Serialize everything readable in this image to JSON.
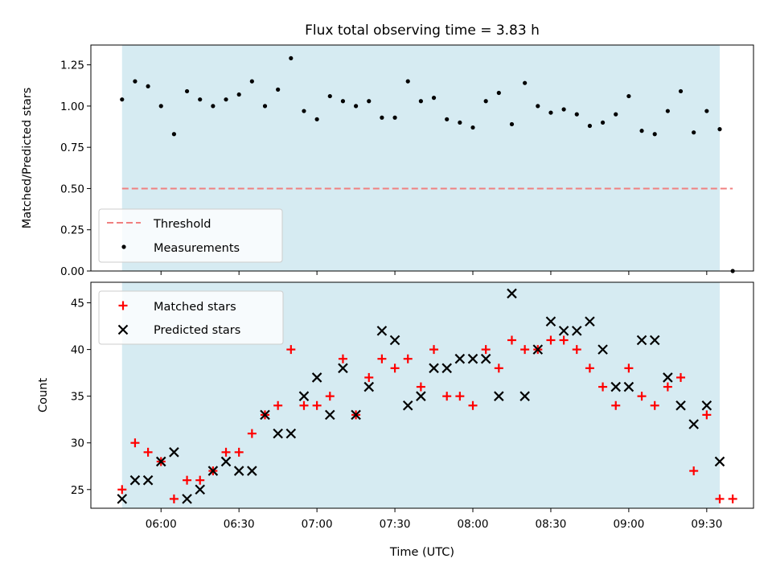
{
  "chart_data": [
    {
      "type": "scatter",
      "title": "Flux total observing time = 3.83 h",
      "xlabel": "",
      "ylabel": "Matched/Predicted stars",
      "ylim": [
        0,
        1.37
      ],
      "yticks": [
        "0.00",
        "0.25",
        "0.50",
        "0.75",
        "1.00",
        "1.25"
      ],
      "ytick_values": [
        0,
        0.25,
        0.5,
        0.75,
        1.0,
        1.25
      ],
      "shaded_span_minutes": [
        345,
        575
      ],
      "threshold": {
        "name": "Threshold",
        "value": 0.5,
        "color": "#f08080",
        "style": "dashed",
        "x_range_minutes": [
          345,
          580
        ]
      },
      "legend": {
        "position": "lower-left",
        "entries": [
          "Threshold",
          "Measurements"
        ]
      },
      "series": [
        {
          "name": "Measurements",
          "color": "#000000",
          "marker": "dot",
          "x": [
            "05:45",
            "05:50",
            "05:55",
            "06:00",
            "06:05",
            "06:10",
            "06:15",
            "06:20",
            "06:25",
            "06:30",
            "06:35",
            "06:40",
            "06:45",
            "06:50",
            "06:55",
            "07:00",
            "07:05",
            "07:10",
            "07:15",
            "07:20",
            "07:25",
            "07:30",
            "07:35",
            "07:40",
            "07:45",
            "07:50",
            "07:55",
            "08:00",
            "08:05",
            "08:10",
            "08:15",
            "08:20",
            "08:25",
            "08:30",
            "08:35",
            "08:40",
            "08:45",
            "08:50",
            "08:55",
            "09:00",
            "09:05",
            "09:10",
            "09:15",
            "09:20",
            "09:25",
            "09:30",
            "09:35",
            "09:40"
          ],
          "values": [
            1.04,
            1.15,
            1.12,
            1.0,
            0.83,
            1.09,
            1.04,
            1.0,
            1.04,
            1.07,
            1.15,
            1.0,
            1.1,
            1.29,
            0.97,
            0.92,
            1.06,
            1.03,
            1.0,
            1.03,
            0.93,
            0.93,
            1.15,
            1.03,
            1.05,
            0.92,
            0.9,
            0.87,
            1.03,
            1.08,
            0.89,
            1.14,
            1.0,
            0.96,
            0.98,
            0.95,
            0.88,
            0.9,
            0.95,
            1.06,
            0.85,
            0.83,
            0.97,
            1.09,
            0.84,
            0.97,
            0.86,
            0.0
          ]
        }
      ]
    },
    {
      "type": "scatter",
      "title": "",
      "xlabel": "Time (UTC)",
      "ylabel": "Count",
      "ylim": [
        23,
        47.2
      ],
      "yticks": [
        "25",
        "30",
        "35",
        "40",
        "45"
      ],
      "ytick_values": [
        25,
        30,
        35,
        40,
        45
      ],
      "xlim_minutes": [
        333,
        588
      ],
      "xticks": [
        "06:00",
        "06:30",
        "07:00",
        "07:30",
        "08:00",
        "08:30",
        "09:00",
        "09:30"
      ],
      "xtick_minutes": [
        360,
        390,
        420,
        450,
        480,
        510,
        540,
        570
      ],
      "shaded_span_minutes": [
        345,
        575
      ],
      "legend": {
        "position": "top-left",
        "entries": [
          "Matched stars",
          "Predicted stars"
        ]
      },
      "series": [
        {
          "name": "Matched stars",
          "color": "#ff0000",
          "marker": "plus",
          "x": [
            "05:45",
            "05:50",
            "05:55",
            "06:00",
            "06:05",
            "06:10",
            "06:15",
            "06:20",
            "06:25",
            "06:30",
            "06:35",
            "06:40",
            "06:45",
            "06:50",
            "06:55",
            "07:00",
            "07:05",
            "07:10",
            "07:15",
            "07:20",
            "07:25",
            "07:30",
            "07:35",
            "07:40",
            "07:45",
            "07:50",
            "07:55",
            "08:00",
            "08:05",
            "08:10",
            "08:15",
            "08:20",
            "08:25",
            "08:30",
            "08:35",
            "08:40",
            "08:45",
            "08:50",
            "08:55",
            "09:00",
            "09:05",
            "09:10",
            "09:15",
            "09:20",
            "09:25",
            "09:30",
            "09:35",
            "09:40"
          ],
          "values": [
            25,
            30,
            29,
            28,
            24,
            26,
            26,
            27,
            29,
            29,
            31,
            33,
            34,
            40,
            34,
            34,
            35,
            39,
            33,
            37,
            39,
            38,
            39,
            36,
            40,
            35,
            35,
            34,
            40,
            38,
            41,
            40,
            40,
            41,
            41,
            40,
            38,
            36,
            34,
            38,
            35,
            34,
            36,
            37,
            27,
            33,
            24,
            24
          ]
        },
        {
          "name": "Predicted stars",
          "color": "#000000",
          "marker": "cross",
          "x": [
            "05:45",
            "05:50",
            "05:55",
            "06:00",
            "06:05",
            "06:10",
            "06:15",
            "06:20",
            "06:25",
            "06:30",
            "06:35",
            "06:40",
            "06:45",
            "06:50",
            "06:55",
            "07:00",
            "07:05",
            "07:10",
            "07:15",
            "07:20",
            "07:25",
            "07:30",
            "07:35",
            "07:40",
            "07:45",
            "07:50",
            "07:55",
            "08:00",
            "08:05",
            "08:10",
            "08:15",
            "08:20",
            "08:25",
            "08:30",
            "08:35",
            "08:40",
            "08:45",
            "08:50",
            "08:55",
            "09:00",
            "09:05",
            "09:10",
            "09:15",
            "09:20",
            "09:25",
            "09:30",
            "09:35"
          ],
          "values": [
            24,
            26,
            26,
            28,
            29,
            24,
            25,
            27,
            28,
            27,
            27,
            33,
            31,
            31,
            35,
            37,
            33,
            38,
            33,
            36,
            42,
            41,
            34,
            35,
            38,
            38,
            39,
            39,
            39,
            35,
            46,
            35,
            40,
            43,
            42,
            42,
            43,
            40,
            36,
            36,
            41,
            41,
            37,
            34,
            32,
            34,
            28
          ]
        }
      ]
    }
  ]
}
